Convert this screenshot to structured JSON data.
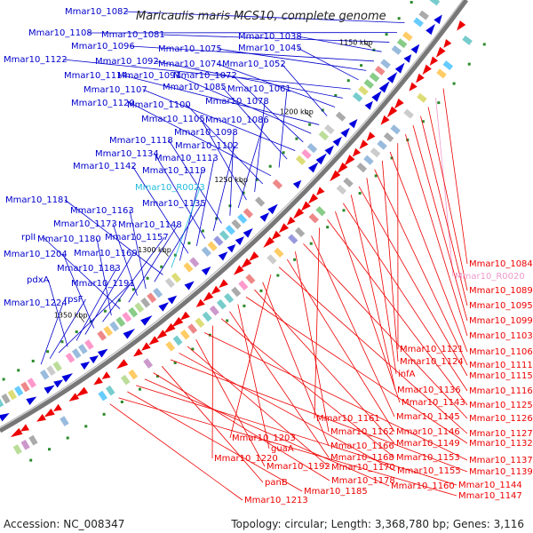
{
  "title": "Maricaulis maris MCS10, complete genome",
  "footer": {
    "accession": "Accession: NC_008347",
    "summary": "Topology: circular; Length: 3,368,780 bp; Genes: 3,116"
  },
  "colors": {
    "backbone": "#777777",
    "plus_strand_arrows": "#0000dd",
    "minus_strand_arrows": "#ee0000",
    "left_labels": "#0000cc",
    "right_labels": "#ee0000",
    "rna_left": "#22bbdd",
    "rna_right": "#ee99cc",
    "tick_marks": "#2a8a2a"
  },
  "ticks": [
    "1150 kbp",
    "1200 kbp",
    "1250 kbp",
    "1300 kbp",
    "1350 kbp"
  ],
  "left_labels": [
    {
      "text": "Mmar10_1082"
    },
    {
      "text": "Mmar10_1108"
    },
    {
      "text": "Mmar10_1081"
    },
    {
      "text": "Mmar10_1038"
    },
    {
      "text": "Mmar10_1096"
    },
    {
      "text": "Mmar10_1075"
    },
    {
      "text": "Mmar10_1045"
    },
    {
      "text": "Mmar10_1122"
    },
    {
      "text": "Mmar10_1092"
    },
    {
      "text": "Mmar10_1074"
    },
    {
      "text": "Mmar10_1052"
    },
    {
      "text": "Mmar10_1114"
    },
    {
      "text": "Mmar10_1091"
    },
    {
      "text": "Mmar10_1072"
    },
    {
      "text": "Mmar10_1107"
    },
    {
      "text": "Mmar10_1085"
    },
    {
      "text": "Mmar10_1061"
    },
    {
      "text": "Mmar10_1120"
    },
    {
      "text": "Mmar10_1100"
    },
    {
      "text": "Mmar10_1078"
    },
    {
      "text": "Mmar10_1105"
    },
    {
      "text": "Mmar10_1086"
    },
    {
      "text": "Mmar10_1098"
    },
    {
      "text": "Mmar10_1118"
    },
    {
      "text": "Mmar10_1102"
    },
    {
      "text": "Mmar10_1134"
    },
    {
      "text": "Mmar10_1113"
    },
    {
      "text": "Mmar10_1142"
    },
    {
      "text": "Mmar10_1119"
    },
    {
      "text": "Mmar10_R0023",
      "rna": true
    },
    {
      "text": "Mmar10_1181"
    },
    {
      "text": "Mmar10_1135"
    },
    {
      "text": "Mmar10_1163"
    },
    {
      "text": "Mmar10_1173"
    },
    {
      "text": "Mmar10_1148"
    },
    {
      "text": "rplI"
    },
    {
      "text": "Mmar10_1180"
    },
    {
      "text": "Mmar10_1157"
    },
    {
      "text": "Mmar10_1204"
    },
    {
      "text": "Mmar10_1169"
    },
    {
      "text": "Mmar10_1183"
    },
    {
      "text": "pdxA"
    },
    {
      "text": "Mmar10_1191"
    },
    {
      "text": "rpsF"
    },
    {
      "text": "Mmar10_1224"
    }
  ],
  "right_labels": [
    {
      "text": "Mmar10_1084"
    },
    {
      "text": "Mmar10_R0020",
      "rna": true
    },
    {
      "text": "Mmar10_1089"
    },
    {
      "text": "Mmar10_1095"
    },
    {
      "text": "Mmar10_1099"
    },
    {
      "text": "Mmar10_1103"
    },
    {
      "text": "Mmar10_1121"
    },
    {
      "text": "Mmar10_1106"
    },
    {
      "text": "Mmar10_1124"
    },
    {
      "text": "Mmar10_1111"
    },
    {
      "text": "infA"
    },
    {
      "text": "Mmar10_1115"
    },
    {
      "text": "Mmar10_1136"
    },
    {
      "text": "Mmar10_1116"
    },
    {
      "text": "Mmar10_1143"
    },
    {
      "text": "Mmar10_1125"
    },
    {
      "text": "Mmar10_1161"
    },
    {
      "text": "Mmar10_1145"
    },
    {
      "text": "Mmar10_1126"
    },
    {
      "text": "Mmar10_1162"
    },
    {
      "text": "Mmar10_1146"
    },
    {
      "text": "Mmar10_1127"
    },
    {
      "text": "Mmar10_1203"
    },
    {
      "text": "Mmar10_1166"
    },
    {
      "text": "Mmar10_1149"
    },
    {
      "text": "Mmar10_1132"
    },
    {
      "text": "guaA"
    },
    {
      "text": "Mmar10_1168"
    },
    {
      "text": "Mmar10_1153"
    },
    {
      "text": "Mmar10_1220"
    },
    {
      "text": "Mmar10_1137"
    },
    {
      "text": "Mmar10_1192"
    },
    {
      "text": "Mmar10_1170"
    },
    {
      "text": "Mmar10_1155"
    },
    {
      "text": "Mmar10_1139"
    },
    {
      "text": "panB"
    },
    {
      "text": "Mmar10_1178"
    },
    {
      "text": "Mmar10_1160"
    },
    {
      "text": "Mmar10_1144"
    },
    {
      "text": "Mmar10_1185"
    },
    {
      "text": "Mmar10_1147"
    },
    {
      "text": "Mmar10_1213"
    }
  ]
}
